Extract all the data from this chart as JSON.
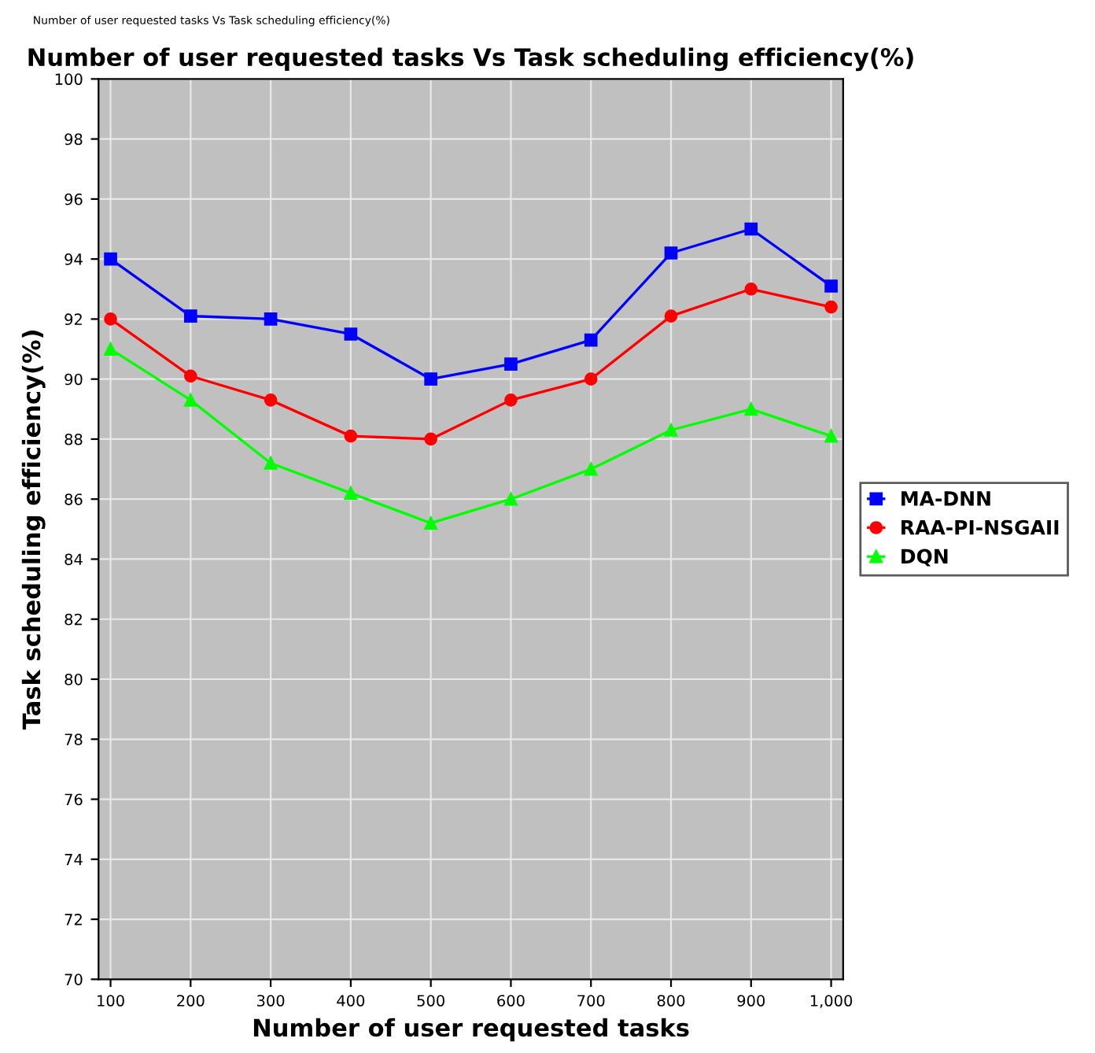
{
  "chart_data": {
    "type": "line",
    "title": "Number of user requested tasks Vs Task scheduling efficiency(%)",
    "xlabel": "Number of user requested tasks",
    "ylabel": "Task scheduling efficiency(%)",
    "annotations": [
      "Number of user requested tasks Vs Task scheduling efficiency(%)"
    ],
    "categories": [
      "100",
      "200",
      "300",
      "400",
      "500",
      "600",
      "700",
      "800",
      "900",
      "1,000"
    ],
    "series": [
      {
        "name": "MA-DNN",
        "color": "#0000ff",
        "marker": "square",
        "values": [
          94,
          92.1,
          92,
          91.5,
          90,
          90.5,
          91.3,
          94.2,
          95,
          93.1
        ]
      },
      {
        "name": "RAA-PI-NSGAII",
        "color": "#ff0000",
        "marker": "circle",
        "values": [
          92,
          90.1,
          89.3,
          88.1,
          88,
          89.3,
          90,
          92.1,
          93,
          92.4
        ]
      },
      {
        "name": "DQN",
        "color": "#00ff00",
        "marker": "triangle",
        "values": [
          91,
          89.3,
          87.2,
          86.2,
          85.2,
          86,
          87,
          88.3,
          89,
          88.1
        ]
      }
    ],
    "ylim": [
      70,
      100
    ],
    "yticks": [
      70,
      72,
      74,
      76,
      78,
      80,
      82,
      84,
      86,
      88,
      90,
      92,
      94,
      96,
      98,
      100
    ],
    "grid": true,
    "legend": "right"
  }
}
